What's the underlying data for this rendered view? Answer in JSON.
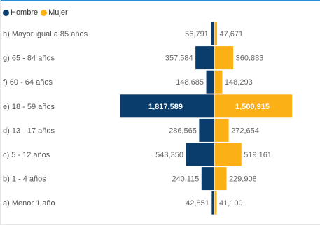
{
  "legend": {
    "male_label": "Hombre",
    "female_label": "Mujer"
  },
  "colors": {
    "male": "#0a3d6b",
    "female": "#fbb116"
  },
  "chart_data": {
    "type": "bar",
    "orientation": "horizontal-diverging",
    "categories": [
      "h) Mayor igual a 85 años",
      "g) 65 - 84 años",
      "f) 60 - 64 años",
      "e) 18 - 59 años",
      "d) 13 - 17 años",
      "c) 5 - 12 años",
      "b) 1 - 4 años",
      "a) Menor 1 año"
    ],
    "series": [
      {
        "name": "Hombre",
        "values": [
          56791,
          357584,
          148685,
          1817589,
          286565,
          543350,
          240115,
          42851
        ],
        "labels": [
          "56,791",
          "357,584",
          "148,685",
          "1,817,589",
          "286,565",
          "543,350",
          "240,115",
          "42,851"
        ]
      },
      {
        "name": "Mujer",
        "values": [
          47671,
          360883,
          148293,
          1500915,
          272654,
          519161,
          229908,
          41100
        ],
        "labels": [
          "47,671",
          "360,883",
          "148,293",
          "1,500,915",
          "272,654",
          "519,161",
          "229,908",
          "41,100"
        ]
      }
    ],
    "legend_position": "top-left",
    "grid": false
  }
}
